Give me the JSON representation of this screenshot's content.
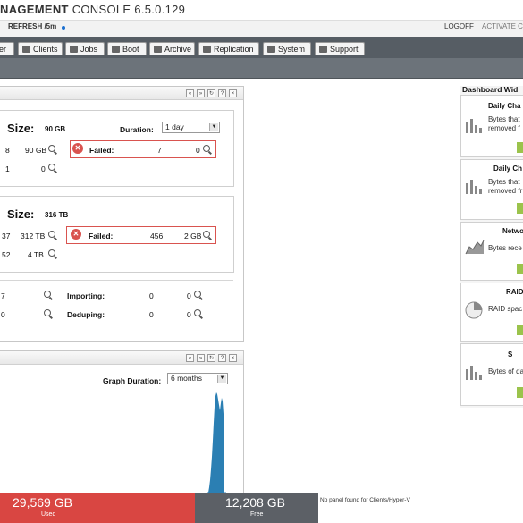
{
  "app": {
    "title_main": "NAGEMENT",
    "title_rest": " CONSOLE 6.5.0.129",
    "refresh_label": "REFRESH /5m",
    "logoff_label": "LOGOFF",
    "activate_label": "ACTIVATE C"
  },
  "nav": {
    "tabs": [
      {
        "label": "er",
        "icon": "none"
      },
      {
        "label": "Clients",
        "icon": "monitor-icon"
      },
      {
        "label": "Jobs",
        "icon": "jobs-icon"
      },
      {
        "label": "Boot",
        "icon": "boot-icon"
      },
      {
        "label": "Archive",
        "icon": "archive-icon"
      },
      {
        "label": "Replication",
        "icon": "replication-icon"
      },
      {
        "label": "System",
        "icon": "gear-icon"
      },
      {
        "label": "Support",
        "icon": "info-icon"
      }
    ]
  },
  "panel_top": {
    "controls": [
      "«",
      "»",
      "↻",
      "?",
      "×"
    ],
    "section1": {
      "size_label": "Size:",
      "size_value": "90 GB",
      "duration_label": "Duration:",
      "duration_value": "1 day",
      "row1_count": "8",
      "row1_size": "90 GB",
      "row2_count": "1",
      "row2_size": "0",
      "failed_label": "Failed:",
      "failed_count": "7",
      "failed_size": "0"
    },
    "section2": {
      "size_label": "Size:",
      "size_value": "316 TB",
      "row1_count": "37",
      "row1_size": "312 TB",
      "row2_count": "52",
      "row2_size": "4 TB",
      "failed_label": "Failed:",
      "failed_count": "456",
      "failed_size": "2 GB"
    },
    "section3": {
      "left_row1": "7",
      "left_row2": "0",
      "importing_label": "Importing:",
      "importing_count": "0",
      "importing_size": "0",
      "deduping_label": "Deduping:",
      "deduping_count": "0",
      "deduping_size": "0"
    }
  },
  "panel_graph": {
    "controls": [
      "«",
      "»",
      "↻",
      "?",
      "×"
    ],
    "duration_label": "Graph Duration:",
    "duration_value": "6 months"
  },
  "storage_bar": {
    "used_value": "29,569 GB",
    "used_label": "Used",
    "free_value": "12,208 GB",
    "free_label": "Free",
    "used_fraction": 0.708,
    "no_panel_text": "No panel found for Clients/Hyper-V",
    "used_color": "#d94642",
    "free_color": "#5c6066"
  },
  "widgets": {
    "header": "Dashboard Wid",
    "items": [
      {
        "title": "Daily Cha",
        "line1": "Bytes that",
        "line2": "removed f",
        "icon": "bar-chart-icon"
      },
      {
        "title": "Daily Ch",
        "line1": "Bytes that",
        "line2": "removed fr",
        "icon": "bar-chart-icon"
      },
      {
        "title": "Netwo",
        "line1": "Bytes rece",
        "line2": "",
        "icon": "area-chart-icon"
      },
      {
        "title": "RAID",
        "line1": "RAID spac",
        "line2": "",
        "icon": "pie-chart-icon"
      },
      {
        "title": "S",
        "line1": "Bytes of da",
        "line2": "",
        "icon": "bar-chart-icon"
      }
    ]
  },
  "colors": {
    "accent_green": "#9bc34c",
    "nav_dark": "#565d64",
    "failed_red": "#d9534f",
    "chart_blue": "#2b7fb3"
  }
}
